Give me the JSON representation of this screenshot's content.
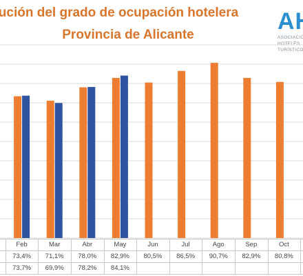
{
  "title": {
    "line1": "ución del grado de ocupación hotelera",
    "line2": "Provincia de Alicante"
  },
  "logo": {
    "mark": "AH",
    "sub1": "ASOCIACIÓN",
    "sub2": "HOTELES",
    "sub3": "TURÍSTICOS"
  },
  "colors": {
    "series_a": "#ed7d31",
    "series_b": "#2f54a0",
    "title": "#d9752b",
    "grid": "#d9d9d9"
  },
  "chart_data": {
    "type": "bar",
    "categories": [
      "Feb",
      "Mar",
      "Abr",
      "May",
      "Jun",
      "Jul",
      "Ago",
      "Sep",
      "Oct"
    ],
    "series": [
      {
        "values": [
          73.4,
          71.1,
          78.0,
          82.9,
          80.5,
          86.5,
          90.7,
          82.9,
          80.8
        ],
        "labels": [
          "73,4%",
          "71,1%",
          "78,0%",
          "82,9%",
          "80,5%",
          "86,5%",
          "90,7%",
          "82,9%",
          "80,8%"
        ]
      },
      {
        "values": [
          73.7,
          69.9,
          78.2,
          84.1,
          null,
          null,
          null,
          null,
          null
        ],
        "labels": [
          "73,7%",
          "69,9%",
          "78,2%",
          "84,1%",
          "",
          "",
          "",
          "",
          ""
        ]
      }
    ],
    "ylim": [
      0,
      100
    ],
    "grid": true,
    "legend": "none"
  }
}
